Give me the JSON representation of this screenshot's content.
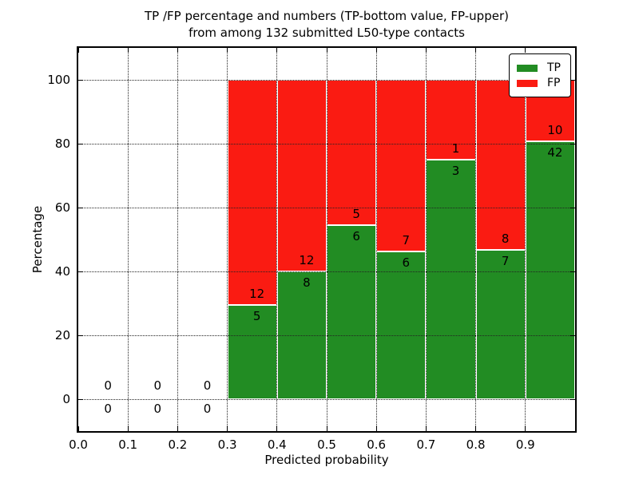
{
  "chart_data": {
    "type": "bar",
    "stacked": true,
    "title_line1": "TP /FP percentage and numbers (TP-bottom value, FP-upper)",
    "title_line2": "from among 132 submitted L50-type contacts",
    "xlabel": "Predicted probability",
    "ylabel": "Percentage",
    "xlim": [
      0.0,
      1.0
    ],
    "ylim": [
      -10,
      110
    ],
    "bar_width": 0.1,
    "grid": "dotted, drawn above bars",
    "total_contacts": 132,
    "xticks": [
      {
        "v": 0.0,
        "label": "0.0"
      },
      {
        "v": 0.1,
        "label": "0.1"
      },
      {
        "v": 0.2,
        "label": "0.2"
      },
      {
        "v": 0.3,
        "label": "0.3"
      },
      {
        "v": 0.4,
        "label": "0.4"
      },
      {
        "v": 0.5,
        "label": "0.5"
      },
      {
        "v": 0.6,
        "label": "0.6"
      },
      {
        "v": 0.7,
        "label": "0.7"
      },
      {
        "v": 0.8,
        "label": "0.8"
      },
      {
        "v": 0.9,
        "label": "0.9"
      }
    ],
    "yticks": [
      {
        "v": 0,
        "label": "0"
      },
      {
        "v": 20,
        "label": "20"
      },
      {
        "v": 40,
        "label": "40"
      },
      {
        "v": 60,
        "label": "60"
      },
      {
        "v": 80,
        "label": "80"
      },
      {
        "v": 100,
        "label": "100"
      }
    ],
    "legend": [
      {
        "label": "TP",
        "color": "#228c23"
      },
      {
        "label": "FP",
        "color": "#fa1b12"
      }
    ],
    "colors": {
      "tp": "#228c23",
      "fp": "#fa1b12",
      "edge": "#ffffff",
      "axis": "#000000"
    },
    "bins": [
      {
        "x0": 0.0,
        "x1": 0.1,
        "tp": 0,
        "fp": 0,
        "tp_pct": null
      },
      {
        "x0": 0.1,
        "x1": 0.2,
        "tp": 0,
        "fp": 0,
        "tp_pct": null
      },
      {
        "x0": 0.2,
        "x1": 0.3,
        "tp": 0,
        "fp": 0,
        "tp_pct": null
      },
      {
        "x0": 0.3,
        "x1": 0.4,
        "tp": 5,
        "fp": 12,
        "tp_pct": 29.4
      },
      {
        "x0": 0.4,
        "x1": 0.5,
        "tp": 8,
        "fp": 12,
        "tp_pct": 40.0
      },
      {
        "x0": 0.5,
        "x1": 0.6,
        "tp": 6,
        "fp": 5,
        "tp_pct": 54.5
      },
      {
        "x0": 0.6,
        "x1": 0.7,
        "tp": 6,
        "fp": 7,
        "tp_pct": 46.2
      },
      {
        "x0": 0.7,
        "x1": 0.8,
        "tp": 3,
        "fp": 1,
        "tp_pct": 75.0
      },
      {
        "x0": 0.8,
        "x1": 0.9,
        "tp": 7,
        "fp": 8,
        "tp_pct": 46.7
      },
      {
        "x0": 0.9,
        "x1": 1.0,
        "tp": 42,
        "fp": 10,
        "tp_pct": 80.8
      }
    ]
  }
}
